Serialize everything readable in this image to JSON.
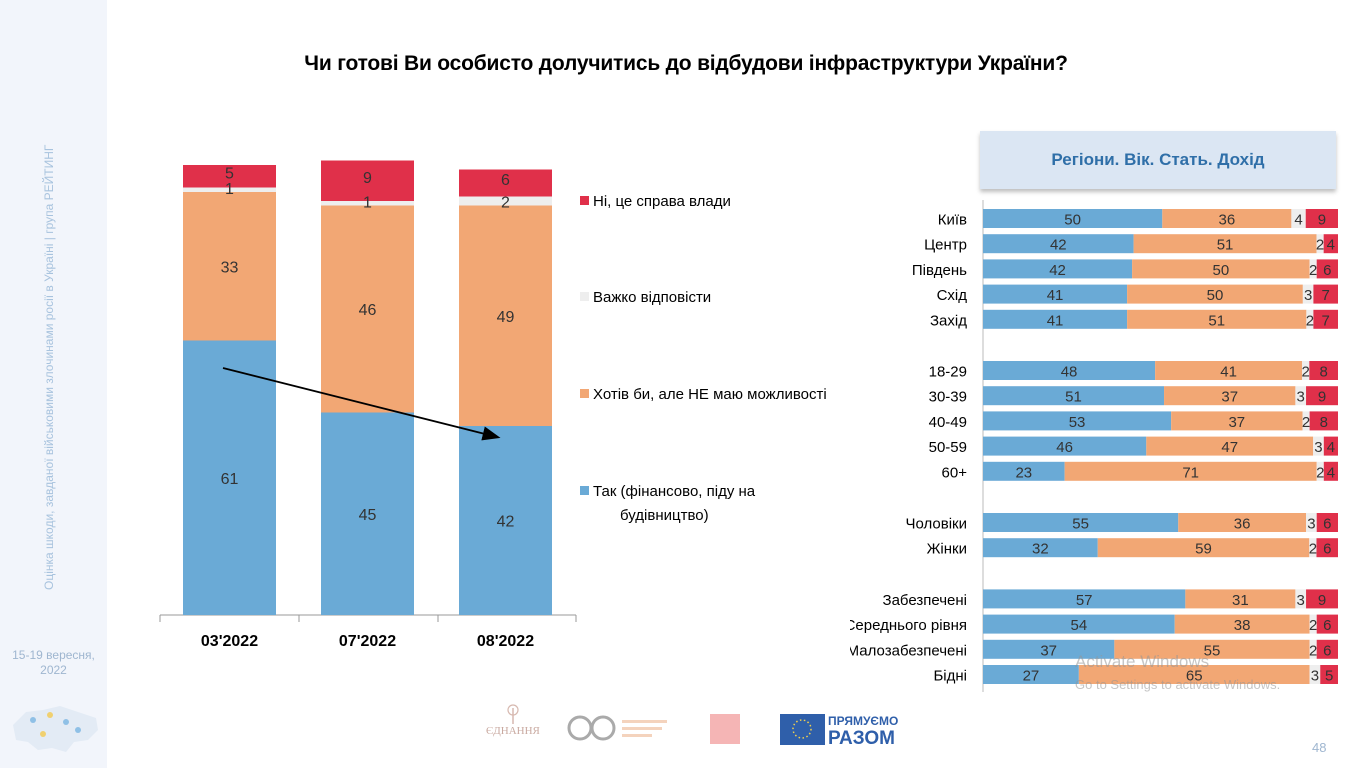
{
  "sidebar": {
    "vertical_text": "Оцінка шкоди, завданої військовими злочинами росії в Україні | група РЕЙТИНГ",
    "date_line1": "15-19 вересня,",
    "date_line2": "2022"
  },
  "title": "Чи готові Ви особисто долучитись до відбудови інфраструктури України?",
  "panel_header": "Регіони. Вік. Стать. Дохід",
  "page_number": "48",
  "watermark": {
    "line1": "Activate Windows",
    "line2": "Go to Settings to activate Windows."
  },
  "logos": {
    "edinnya": "ЄДНАННЯ",
    "razom_line1": "ПРЯМУЄМО",
    "razom_line2": "РАЗОМ"
  },
  "colors": {
    "yes": "#6aaad6",
    "want": "#f2a774",
    "hard": "#eeeeee",
    "no": "#e0304a"
  },
  "chart_data": [
    {
      "type": "bar",
      "stacked": true,
      "categories": [
        "03'2022",
        "07'2022",
        "08'2022"
      ],
      "series": [
        {
          "name": "Так (фінансово, піду на будівництво)",
          "key": "yes",
          "values": [
            61,
            45,
            42
          ]
        },
        {
          "name": "Хотів би, але НЕ маю можливості",
          "key": "want",
          "values": [
            33,
            46,
            49
          ]
        },
        {
          "name": "Важко відповісти",
          "key": "hard",
          "values": [
            1,
            1,
            2
          ]
        },
        {
          "name": "Ні, це справа влади",
          "key": "no",
          "values": [
            5,
            9,
            6
          ]
        }
      ],
      "ylim": [
        0,
        100
      ],
      "legend_position": "right",
      "grid": false,
      "annotation": "downward arrow from 03'2022 to 08'2022 over the Так segment"
    },
    {
      "type": "bar",
      "orientation": "horizontal",
      "stacked": true,
      "groups": [
        {
          "rows": [
            {
              "label": "Київ",
              "values": [
                50,
                36,
                4,
                9
              ]
            },
            {
              "label": "Центр",
              "values": [
                42,
                51,
                2,
                4
              ]
            },
            {
              "label": "Південь",
              "values": [
                42,
                50,
                2,
                6
              ]
            },
            {
              "label": "Схід",
              "values": [
                41,
                50,
                3,
                7
              ]
            },
            {
              "label": "Захід",
              "values": [
                41,
                51,
                2,
                7
              ]
            }
          ]
        },
        {
          "rows": [
            {
              "label": "18-29",
              "values": [
                48,
                41,
                2,
                8
              ]
            },
            {
              "label": "30-39",
              "values": [
                51,
                37,
                3,
                9
              ]
            },
            {
              "label": "40-49",
              "values": [
                53,
                37,
                2,
                8
              ]
            },
            {
              "label": "50-59",
              "values": [
                46,
                47,
                3,
                4
              ]
            },
            {
              "label": "60+",
              "values": [
                23,
                71,
                2,
                4
              ]
            }
          ]
        },
        {
          "rows": [
            {
              "label": "Чоловіки",
              "values": [
                55,
                36,
                3,
                6
              ]
            },
            {
              "label": "Жінки",
              "values": [
                32,
                59,
                2,
                6
              ]
            }
          ]
        },
        {
          "rows": [
            {
              "label": "Забезпечені",
              "values": [
                57,
                31,
                3,
                9
              ]
            },
            {
              "label": "Середнього рівня",
              "values": [
                54,
                38,
                2,
                6
              ]
            },
            {
              "label": "Малозабезпечені",
              "values": [
                37,
                55,
                2,
                6
              ]
            },
            {
              "label": "Бідні",
              "values": [
                27,
                65,
                3,
                5
              ]
            }
          ]
        }
      ],
      "series_order": [
        "yes",
        "want",
        "hard",
        "no"
      ],
      "xlim": [
        0,
        100
      ]
    }
  ]
}
